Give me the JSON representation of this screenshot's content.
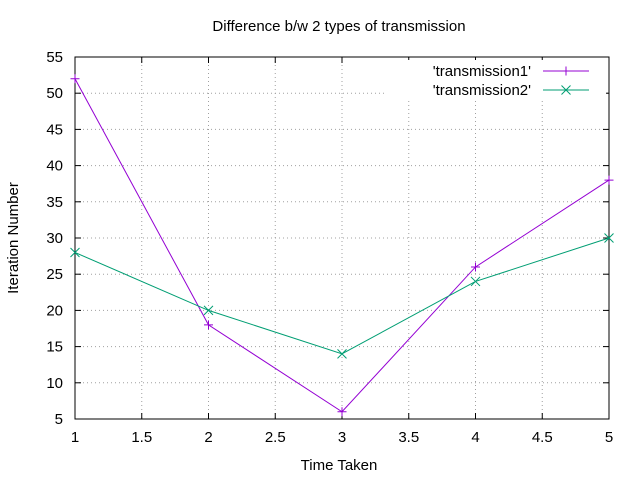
{
  "chart_data": {
    "type": "line",
    "title": "Difference b/w 2 types of transmission",
    "xlabel": "Time Taken",
    "ylabel": "Iteration Number",
    "xlim": [
      1,
      5
    ],
    "ylim": [
      5,
      55
    ],
    "xticks": [
      "1",
      "1.5",
      "2",
      "2.5",
      "3",
      "3.5",
      "4",
      "4.5",
      "5"
    ],
    "yticks": [
      "5",
      "10",
      "15",
      "20",
      "25",
      "30",
      "35",
      "40",
      "45",
      "50",
      "55"
    ],
    "grid": true,
    "legend_position": "top-right",
    "x": [
      1,
      2,
      3,
      4,
      5
    ],
    "series": [
      {
        "name": "'transmission1'",
        "values": [
          52,
          18,
          6,
          26,
          38
        ],
        "color": "#9400d3",
        "marker": "plus"
      },
      {
        "name": "'transmission2'",
        "values": [
          28,
          20,
          14,
          24,
          30
        ],
        "color": "#009e73",
        "marker": "cross"
      }
    ]
  }
}
